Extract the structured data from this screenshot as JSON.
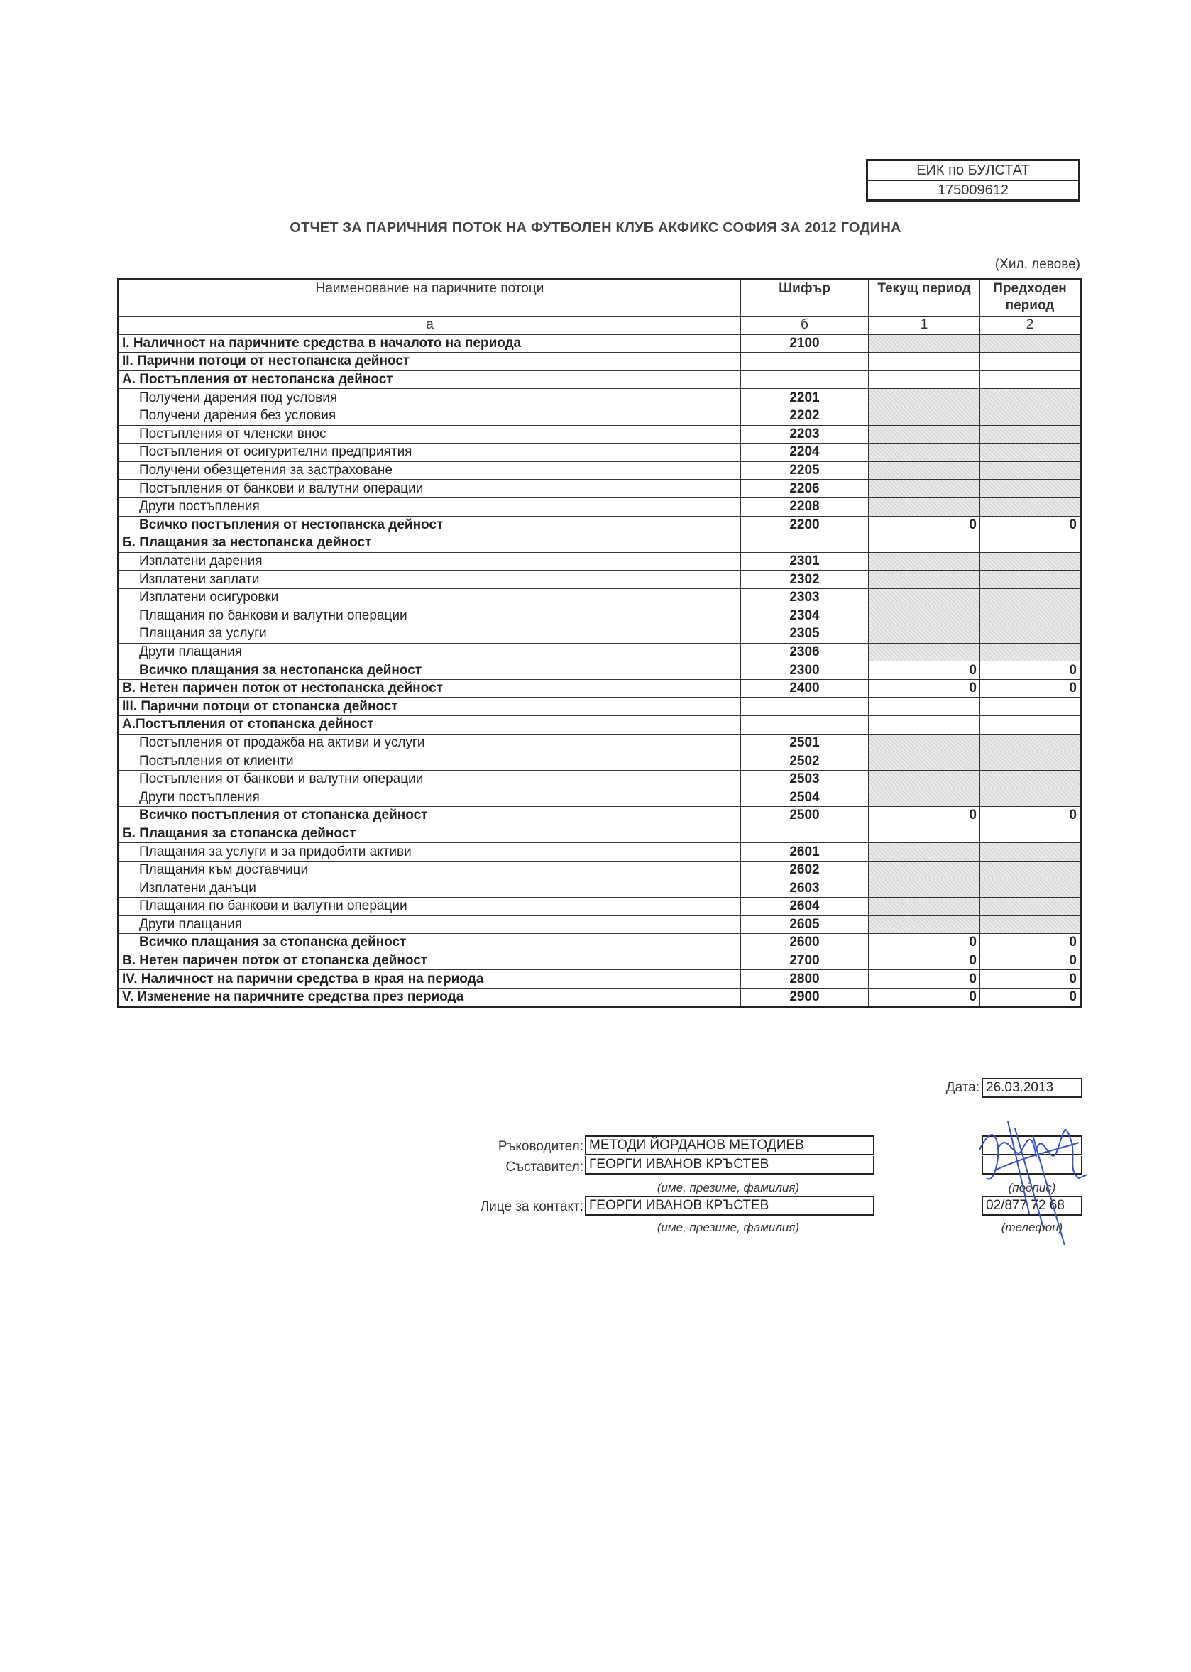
{
  "eik": {
    "label": "ЕИК по БУЛСТАТ",
    "value": "175009612"
  },
  "title": "ОТЧЕТ ЗА ПАРИЧНИЯ ПОТОК НА ФУТБОЛЕН КЛУБ АКФИКС СОФИЯ ЗА 2012 ГОДИНА",
  "units": "(Хил. левове)",
  "table": {
    "headers": [
      "Наименование на паричните потоци",
      "Шифър",
      "Текущ период",
      "Предходен период"
    ],
    "index_row": [
      "а",
      "б",
      "1",
      "2"
    ],
    "rows": [
      {
        "label": "I. Наличност на паричните средства в началото на периода",
        "code": "2100",
        "cur": "",
        "prev": "",
        "bold": true,
        "shaded": true
      },
      {
        "label": "II. Парични потоци от нестопанска дейност",
        "code": "",
        "cur": "",
        "prev": "",
        "bold": true
      },
      {
        "label": "А. Постъпления от нестопанска дейност",
        "code": "",
        "cur": "",
        "prev": "",
        "bold": true
      },
      {
        "label": "Получени дарения под условия",
        "code": "2201",
        "cur": "",
        "prev": "",
        "indent": true,
        "shaded": true
      },
      {
        "label": "Получени дарения без условия",
        "code": "2202",
        "cur": "",
        "prev": "",
        "indent": true,
        "shaded": true
      },
      {
        "label": "Постъпления от членски внос",
        "code": "2203",
        "cur": "",
        "prev": "",
        "indent": true,
        "shaded": true
      },
      {
        "label": "Постъпления от осигурителни предприятия",
        "code": "2204",
        "cur": "",
        "prev": "",
        "indent": true,
        "shaded": true
      },
      {
        "label": "Получени обезщетения за застраховане",
        "code": "2205",
        "cur": "",
        "prev": "",
        "indent": true,
        "shaded": true
      },
      {
        "label": "Постъпления от банкови и валутни операции",
        "code": "2206",
        "cur": "",
        "prev": "",
        "indent": true,
        "shaded": true
      },
      {
        "label": "Други постъпления",
        "code": "2208",
        "cur": "",
        "prev": "",
        "indent": true,
        "shaded": true
      },
      {
        "label": "Всичко постъпления от нестопанска дейност",
        "code": "2200",
        "cur": "0",
        "prev": "0",
        "bold": true,
        "indent": true
      },
      {
        "label": "Б. Плащания за нестопанска дейност",
        "code": "",
        "cur": "",
        "prev": "",
        "bold": true
      },
      {
        "label": "Изплатени дарения",
        "code": "2301",
        "cur": "",
        "prev": "",
        "indent": true,
        "shaded": true
      },
      {
        "label": "Изплатени заплати",
        "code": "2302",
        "cur": "",
        "prev": "",
        "indent": true,
        "shaded": true
      },
      {
        "label": "Изплатени осигуровки",
        "code": "2303",
        "cur": "",
        "prev": "",
        "indent": true,
        "shaded": true
      },
      {
        "label": "Плащания по банкови и валутни операции",
        "code": "2304",
        "cur": "",
        "prev": "",
        "indent": true,
        "shaded": true
      },
      {
        "label": "Плащания за услуги",
        "code": "2305",
        "cur": "",
        "prev": "",
        "indent": true,
        "shaded": true
      },
      {
        "label": "Други плащания",
        "code": "2306",
        "cur": "",
        "prev": "",
        "indent": true,
        "shaded": true
      },
      {
        "label": "Всичко плащания за нестопанска дейност",
        "code": "2300",
        "cur": "0",
        "prev": "0",
        "bold": true,
        "indent": true
      },
      {
        "label": "В. Нетен паричен поток от нестопанска дейност",
        "code": "2400",
        "cur": "0",
        "prev": "0",
        "bold": true
      },
      {
        "label": "III. Парични потоци от стопанска дейност",
        "code": "",
        "cur": "",
        "prev": "",
        "bold": true
      },
      {
        "label": "А.Постъпления от стопанска дейност",
        "code": "",
        "cur": "",
        "prev": "",
        "bold": true
      },
      {
        "label": "Постъпления от продажба на активи и услуги",
        "code": "2501",
        "cur": "",
        "prev": "",
        "indent": true,
        "shaded": true
      },
      {
        "label": "Постъпления от клиенти",
        "code": "2502",
        "cur": "",
        "prev": "",
        "indent": true,
        "shaded": true
      },
      {
        "label": "Постъпления от банкови и валутни операции",
        "code": "2503",
        "cur": "",
        "prev": "",
        "indent": true,
        "shaded": true
      },
      {
        "label": "Други постъпления",
        "code": "2504",
        "cur": "",
        "prev": "",
        "indent": true,
        "shaded": true
      },
      {
        "label": "Всичко постъпления от стопанска дейност",
        "code": "2500",
        "cur": "0",
        "prev": "0",
        "bold": true,
        "indent": true
      },
      {
        "label": "Б. Плащания за стопанска дейност",
        "code": "",
        "cur": "",
        "prev": "",
        "bold": true
      },
      {
        "label": "Плащания за услуги и за придобити активи",
        "code": "2601",
        "cur": "",
        "prev": "",
        "indent": true,
        "shaded": true
      },
      {
        "label": "Плащания към доставчици",
        "code": "2602",
        "cur": "",
        "prev": "",
        "indent": true,
        "shaded": true
      },
      {
        "label": "Изплатени данъци",
        "code": "2603",
        "cur": "",
        "prev": "",
        "indent": true,
        "shaded": true
      },
      {
        "label": "Плащания по банкови и валутни операции",
        "code": "2604",
        "cur": "",
        "prev": "",
        "indent": true,
        "shaded": true
      },
      {
        "label": "Други плащания",
        "code": "2605",
        "cur": "",
        "prev": "",
        "indent": true,
        "shaded": true
      },
      {
        "label": "Всичко плащания за стопанска дейност",
        "code": "2600",
        "cur": "0",
        "prev": "0",
        "bold": true,
        "indent": true
      },
      {
        "label": "В. Нетен паричен поток от стопанска дейност",
        "code": "2700",
        "cur": "0",
        "prev": "0",
        "bold": true
      },
      {
        "label": "IV. Наличност на парични средства в края на периода",
        "code": "2800",
        "cur": "0",
        "prev": "0",
        "bold": true
      },
      {
        "label": "V. Изменение на паричните средства през периода",
        "code": "2900",
        "cur": "0",
        "prev": "0",
        "bold": true
      }
    ]
  },
  "footer": {
    "date_label": "Дата:",
    "date_value": "26.03.2013",
    "manager_label": "Ръководител:",
    "manager_value": "МЕТОДИ ЙОРДАНОВ МЕТОДИЕВ",
    "compiler_label": "Съставител:",
    "compiler_value": "ГЕОРГИ ИВАНОВ КРЪСТЕВ",
    "name_caption": "(име, презиме, фамилия)",
    "contact_label": "Лице за контакт:",
    "contact_value": "ГЕОРГИ ИВАНОВ КРЪСТЕВ",
    "contact_caption": "(име, презиме, фамилия)",
    "signature_caption": "(подпис)",
    "phone_value": "02/877 72 68",
    "phone_caption": "(телефон)",
    "signature_ink_color": "#3a4fc0"
  }
}
